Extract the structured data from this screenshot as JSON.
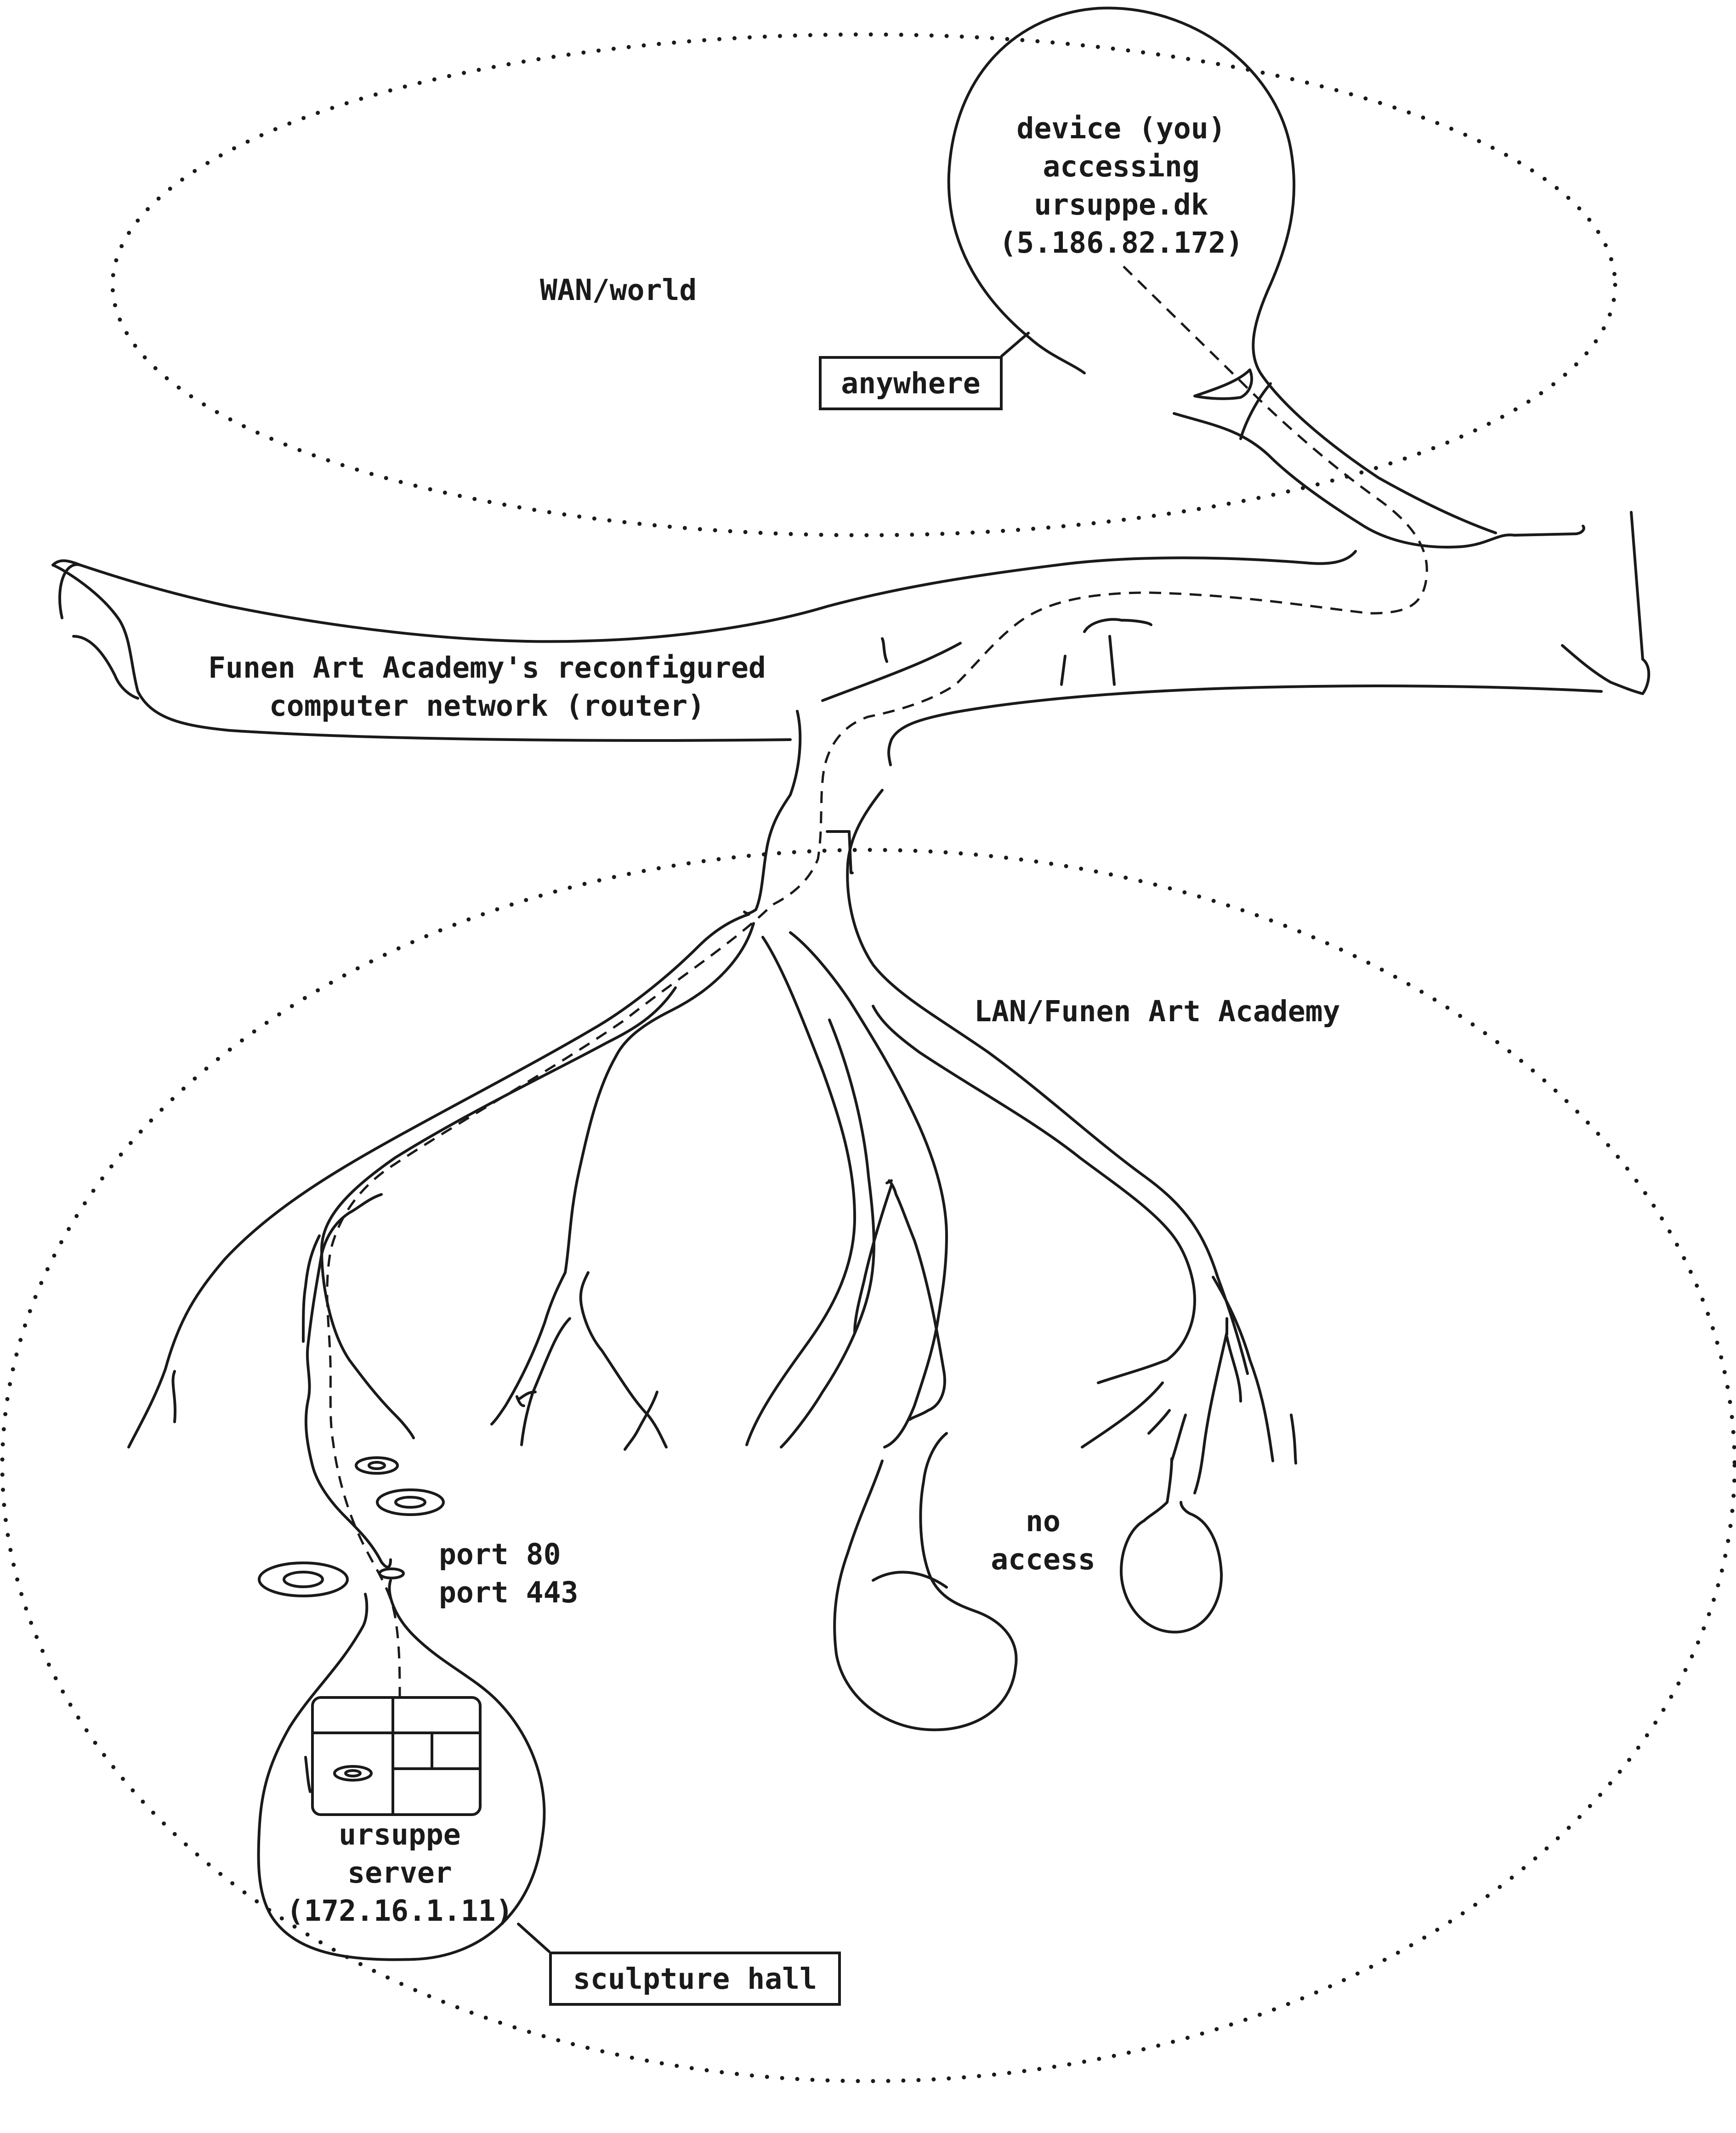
{
  "diagram": {
    "zones": {
      "wan_label": "WAN/world",
      "lan_label": "LAN/Funen Art Academy"
    },
    "device": {
      "lines": [
        "device (you)",
        "accessing",
        "ursuppe.dk",
        "(5.186.82.172)"
      ],
      "location_tag": "anywhere"
    },
    "router": {
      "lines": [
        "Funen Art Academy's reconfigured",
        "computer network (router)"
      ]
    },
    "ports": {
      "lines": [
        "port 80",
        "port 443"
      ]
    },
    "no_access": {
      "lines": [
        "no",
        "access"
      ]
    },
    "server": {
      "lines": [
        "ursuppe",
        "server",
        "(172.16.1.11)"
      ],
      "location_tag": "sculpture hall"
    },
    "colors": {
      "ink": "#1a1a1a",
      "background": "#ffffff"
    }
  }
}
